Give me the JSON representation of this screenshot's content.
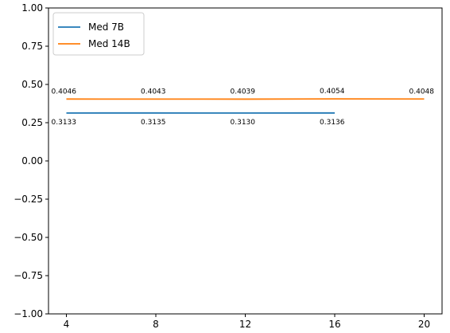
{
  "chart_data": {
    "type": "line",
    "x": [
      4,
      8,
      12,
      16,
      20
    ],
    "xticks": [
      4,
      8,
      12,
      16,
      20
    ],
    "yticks": [
      -1.0,
      -0.75,
      -0.5,
      -0.25,
      0.0,
      0.25,
      0.5,
      0.75,
      1.0
    ],
    "ytick_labels": [
      "−1.00",
      "−0.75",
      "−0.50",
      "−0.25",
      "0.00",
      "0.25",
      "0.50",
      "0.75",
      "1.00"
    ],
    "xlim": [
      3.2,
      20.8
    ],
    "ylim": [
      -1.0,
      1.0
    ],
    "grid": false,
    "legend_position": "top-left",
    "title": "",
    "xlabel": "",
    "ylabel": "",
    "series": [
      {
        "name": "Med 7B",
        "color": "#1f77b4",
        "x": [
          4,
          8,
          12,
          16
        ],
        "values": [
          0.3133,
          0.3135,
          0.313,
          0.3136
        ],
        "labels": [
          "0.3133",
          "0.3135",
          "0.3130",
          "0.3136"
        ],
        "label_position": "below"
      },
      {
        "name": "Med 14B",
        "color": "#ff7f0e",
        "x": [
          4,
          8,
          12,
          16,
          20
        ],
        "values": [
          0.4046,
          0.4043,
          0.4039,
          0.4054,
          0.4048
        ],
        "labels": [
          "0.4046",
          "0.4043",
          "0.4039",
          "0.4054",
          "0.4048"
        ],
        "label_position": "above"
      }
    ]
  }
}
